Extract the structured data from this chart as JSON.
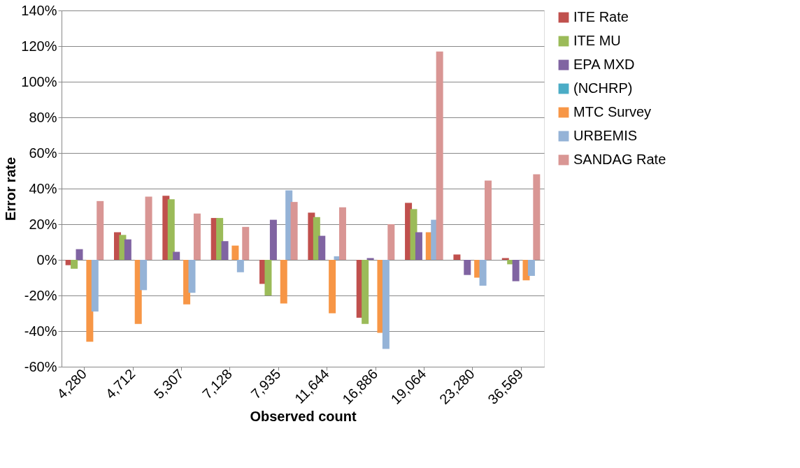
{
  "chart_data": {
    "type": "bar",
    "xlabel": "Observed count",
    "ylabel": "Error rate",
    "categories": [
      "4,280",
      "4,712",
      "5,307",
      "7,128",
      "7,935",
      "11,644",
      "16,886",
      "19,064",
      "23,280",
      "36,569"
    ],
    "series": [
      {
        "name": "ITE Rate",
        "color": "#c0504d",
        "values": [
          -3,
          15.5,
          36,
          23.5,
          -13.5,
          26.5,
          -32.5,
          32,
          3,
          1
        ]
      },
      {
        "name": "ITE MU",
        "color": "#9bbb59",
        "values": [
          -5,
          14,
          34,
          23.5,
          -20,
          24,
          -36,
          28.5,
          null,
          -2.5
        ]
      },
      {
        "name": "EPA MXD",
        "color": "#8064a2",
        "values": [
          6,
          11.5,
          4.5,
          10.5,
          22.5,
          13.5,
          1,
          15.5,
          -8.5,
          -12
        ]
      },
      {
        "name": "(NCHRP)",
        "color": "#4bacc6",
        "values": [
          null,
          null,
          null,
          null,
          null,
          null,
          null,
          null,
          null,
          null
        ]
      },
      {
        "name": "MTC Survey",
        "color": "#f79646",
        "values": [
          -46,
          -36,
          -25,
          8,
          -24.5,
          -30,
          -41,
          15.5,
          -10,
          -11.5
        ]
      },
      {
        "name": "URBEMIS",
        "color": "#95b3d7",
        "values": [
          -29,
          -17,
          -18.5,
          -7,
          39,
          2,
          -50,
          22.5,
          -14.5,
          -9
        ]
      },
      {
        "name": "SANDAG Rate",
        "color": "#d99694",
        "values": [
          33,
          35.5,
          26,
          18.5,
          32.5,
          29.5,
          20,
          117,
          44.5,
          48
        ]
      }
    ],
    "ylim": [
      -60,
      140
    ],
    "yticks": [
      {
        "value": -60,
        "label": "-60%"
      },
      {
        "value": -40,
        "label": "-40%"
      },
      {
        "value": -20,
        "label": "-20%"
      },
      {
        "value": 0,
        "label": "0%"
      },
      {
        "value": 20,
        "label": "20%"
      },
      {
        "value": 40,
        "label": "40%"
      },
      {
        "value": 60,
        "label": "60%"
      },
      {
        "value": 80,
        "label": "80%"
      },
      {
        "value": 100,
        "label": "100%"
      },
      {
        "value": 120,
        "label": "120%"
      },
      {
        "value": 140,
        "label": "140%"
      }
    ],
    "grid": "y",
    "legend": "right"
  }
}
